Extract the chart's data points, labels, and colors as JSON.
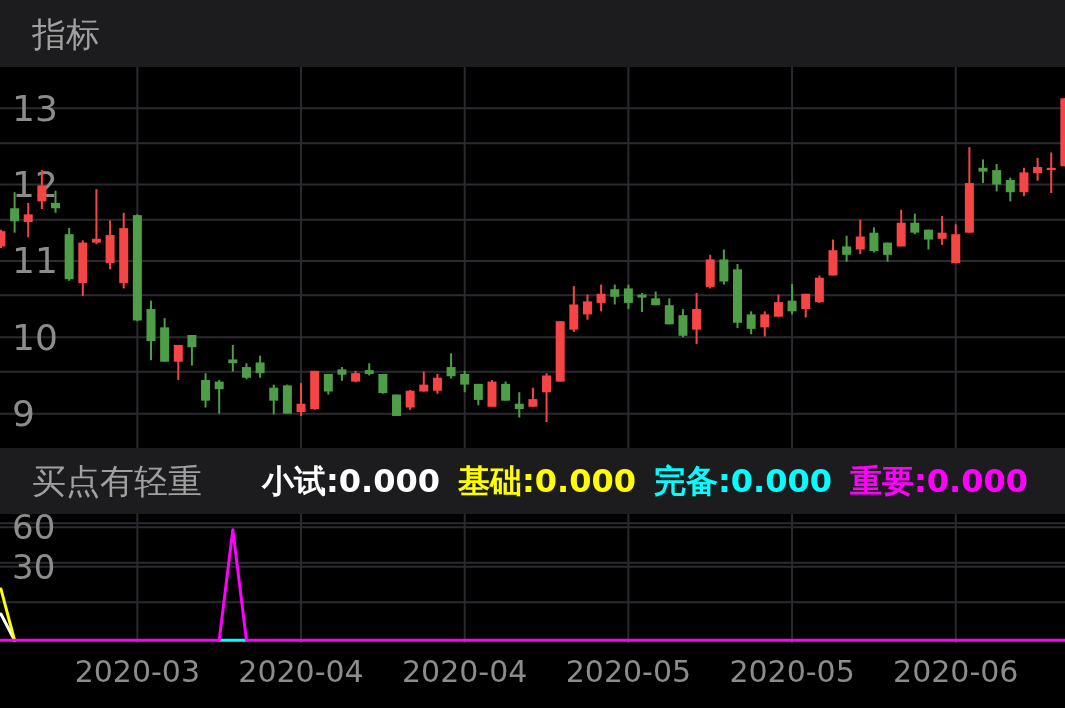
{
  "chart_data": [
    {
      "type": "candlestick",
      "title": "指标",
      "categories": [
        null,
        null,
        null,
        null,
        null,
        null,
        null,
        null,
        null,
        null,
        "2020-03",
        null,
        null,
        null,
        null,
        null,
        null,
        null,
        null,
        null,
        null,
        null,
        "2020-04",
        null,
        null,
        null,
        null,
        null,
        null,
        null,
        null,
        null,
        null,
        null,
        "2020-04",
        null,
        null,
        null,
        null,
        null,
        null,
        null,
        null,
        null,
        null,
        null,
        "2020-05",
        null,
        null,
        null,
        null,
        null,
        null,
        null,
        null,
        null,
        null,
        null,
        "2020-05",
        null,
        null,
        null,
        null,
        null,
        null,
        null,
        null,
        null,
        null,
        null,
        "2020-06",
        null,
        null,
        null,
        null,
        null,
        null,
        null,
        null
      ],
      "ohlc": [
        [
          11.19,
          11.41,
          11.17,
          11.39
        ],
        [
          11.69,
          11.9,
          11.37,
          11.52
        ],
        [
          11.51,
          11.76,
          11.31,
          11.61
        ],
        [
          11.78,
          12.19,
          11.68,
          11.99
        ],
        [
          11.76,
          11.92,
          11.63,
          11.69
        ],
        [
          11.35,
          11.43,
          10.74,
          10.76
        ],
        [
          10.71,
          11.27,
          10.54,
          11.24
        ],
        [
          11.24,
          11.94,
          11.22,
          11.29
        ],
        [
          10.97,
          11.53,
          10.89,
          11.34
        ],
        [
          10.71,
          11.63,
          10.64,
          11.43
        ],
        [
          11.6,
          11.61,
          10.21,
          10.22
        ],
        [
          10.37,
          10.48,
          9.7,
          9.95
        ],
        [
          10.13,
          10.25,
          9.68,
          9.68
        ],
        [
          9.68,
          9.9,
          9.44,
          9.9
        ],
        [
          10.03,
          10.03,
          9.63,
          9.87
        ],
        [
          9.44,
          9.53,
          9.08,
          9.17
        ],
        [
          9.42,
          9.44,
          9.0,
          9.32
        ],
        [
          9.71,
          9.9,
          9.55,
          9.66
        ],
        [
          9.61,
          9.66,
          9.45,
          9.47
        ],
        [
          9.67,
          9.76,
          9.47,
          9.53
        ],
        [
          9.34,
          9.38,
          8.99,
          9.17
        ],
        [
          9.37,
          9.38,
          9.0,
          9.0
        ],
        [
          9.02,
          9.4,
          8.97,
          9.13
        ],
        [
          9.06,
          9.56,
          9.05,
          9.56
        ],
        [
          9.52,
          9.52,
          9.25,
          9.29
        ],
        [
          9.58,
          9.61,
          9.43,
          9.51
        ],
        [
          9.42,
          9.56,
          9.41,
          9.53
        ],
        [
          9.57,
          9.66,
          9.5,
          9.52
        ],
        [
          9.52,
          9.52,
          9.26,
          9.27
        ],
        [
          9.25,
          9.25,
          8.97,
          8.97
        ],
        [
          9.08,
          9.31,
          9.05,
          9.3
        ],
        [
          9.29,
          9.55,
          9.29,
          9.38
        ],
        [
          9.3,
          9.52,
          9.26,
          9.47
        ],
        [
          9.61,
          9.79,
          9.46,
          9.49
        ],
        [
          9.52,
          9.56,
          9.28,
          9.38
        ],
        [
          9.39,
          9.39,
          9.11,
          9.18
        ],
        [
          9.09,
          9.44,
          9.09,
          9.42
        ],
        [
          9.39,
          9.42,
          9.17,
          9.17
        ],
        [
          9.13,
          9.28,
          8.95,
          9.06
        ],
        [
          9.09,
          9.34,
          9.09,
          9.19
        ],
        [
          9.28,
          9.53,
          8.89,
          9.5
        ],
        [
          9.42,
          10.21,
          9.42,
          10.21
        ],
        [
          10.1,
          10.67,
          10.07,
          10.43
        ],
        [
          10.3,
          10.56,
          10.23,
          10.47
        ],
        [
          10.45,
          10.69,
          10.34,
          10.57
        ],
        [
          10.63,
          10.69,
          10.43,
          10.53
        ],
        [
          10.64,
          10.69,
          10.37,
          10.45
        ],
        [
          10.56,
          10.58,
          10.33,
          10.52
        ],
        [
          10.51,
          10.6,
          10.42,
          10.42
        ],
        [
          10.42,
          10.51,
          10.17,
          10.17
        ],
        [
          10.29,
          10.37,
          10.0,
          10.02
        ],
        [
          10.1,
          10.58,
          9.91,
          10.37
        ],
        [
          10.66,
          11.08,
          10.64,
          11.02
        ],
        [
          11.02,
          11.15,
          10.69,
          10.73
        ],
        [
          10.89,
          10.96,
          10.12,
          10.19
        ],
        [
          10.3,
          10.34,
          10.04,
          10.11
        ],
        [
          10.13,
          10.34,
          10.01,
          10.3
        ],
        [
          10.27,
          10.56,
          10.27,
          10.46
        ],
        [
          10.48,
          10.7,
          10.3,
          10.34
        ],
        [
          10.37,
          10.57,
          10.26,
          10.57
        ],
        [
          10.46,
          10.81,
          10.45,
          10.78
        ],
        [
          10.81,
          11.28,
          10.81,
          11.14
        ],
        [
          11.19,
          11.33,
          10.99,
          11.08
        ],
        [
          11.15,
          11.54,
          11.09,
          11.32
        ],
        [
          11.37,
          11.44,
          11.11,
          11.13
        ],
        [
          11.24,
          11.24,
          10.99,
          11.08
        ],
        [
          11.19,
          11.67,
          11.19,
          11.5
        ],
        [
          11.5,
          11.62,
          11.35,
          11.37
        ],
        [
          11.41,
          11.41,
          11.15,
          11.28
        ],
        [
          11.29,
          11.59,
          11.21,
          11.37
        ],
        [
          10.97,
          11.48,
          10.97,
          11.35
        ],
        [
          11.37,
          12.49,
          11.37,
          12.02
        ],
        [
          12.22,
          12.33,
          12.02,
          12.17
        ],
        [
          12.19,
          12.27,
          11.91,
          12.0
        ],
        [
          12.06,
          12.09,
          11.78,
          11.9
        ],
        [
          11.9,
          12.22,
          11.85,
          12.16
        ],
        [
          12.15,
          12.35,
          12.05,
          12.23
        ],
        [
          12.19,
          12.42,
          11.89,
          12.22
        ],
        [
          12.24,
          13.13,
          12.24,
          13.13
        ]
      ],
      "colors": [
        "#f64545",
        "#4e9d47",
        "#f64545",
        "#f64545",
        "#4e9d47",
        "#4e9d47",
        "#f64545",
        "#f64545",
        "#f64545",
        "#f64545",
        "#4e9d47",
        "#4e9d47",
        "#4e9d47",
        "#f64545",
        "#4e9d47",
        "#4e9d47",
        "#4e9d47",
        "#4e9d47",
        "#4e9d47",
        "#4e9d47",
        "#4e9d47",
        "#4e9d47",
        "#f64545",
        "#f64545",
        "#4e9d47",
        "#4e9d47",
        "#f64545",
        "#4e9d47",
        "#4e9d47",
        "#4e9d47",
        "#f64545",
        "#f64545",
        "#f64545",
        "#4e9d47",
        "#4e9d47",
        "#4e9d47",
        "#f64545",
        "#4e9d47",
        "#4e9d47",
        "#f64545",
        "#f64545",
        "#f64545",
        "#f64545",
        "#f64545",
        "#f64545",
        "#4e9d47",
        "#4e9d47",
        "#4e9d47",
        "#4e9d47",
        "#4e9d47",
        "#4e9d47",
        "#f64545",
        "#f64545",
        "#4e9d47",
        "#4e9d47",
        "#4e9d47",
        "#f64545",
        "#f64545",
        "#4e9d47",
        "#f64545",
        "#f64545",
        "#f64545",
        "#4e9d47",
        "#f64545",
        "#4e9d47",
        "#4e9d47",
        "#f64545",
        "#4e9d47",
        "#4e9d47",
        "#f64545",
        "#f64545",
        "#f64545",
        "#4e9d47",
        "#4e9d47",
        "#4e9d47",
        "#f64545",
        "#f64545",
        "#f64545",
        "#f64545"
      ],
      "ylim": [
        8.55,
        13.54
      ],
      "yticks": [
        9,
        10,
        11,
        12,
        13,
        {
          "value": 9.55,
          "label": null
        },
        {
          "value": 10.55,
          "label": null
        },
        {
          "value": 11.54,
          "label": null
        },
        {
          "value": 12.54,
          "label": null
        }
      ],
      "grid": true,
      "tick_labels": "y"
    },
    {
      "type": "line",
      "title": "买点有轻重",
      "categories": [
        null,
        null,
        null,
        null,
        null,
        null,
        null,
        null,
        null,
        null,
        "2020-03",
        null,
        null,
        null,
        null,
        null,
        null,
        null,
        null,
        null,
        null,
        null,
        "2020-04",
        null,
        null,
        null,
        null,
        null,
        null,
        null,
        null,
        null,
        null,
        null,
        "2020-04",
        null,
        null,
        null,
        null,
        null,
        null,
        null,
        null,
        null,
        null,
        null,
        "2020-05",
        null,
        null,
        null,
        null,
        null,
        null,
        null,
        null,
        null,
        null,
        null,
        "2020-05",
        null,
        null,
        null,
        null,
        null,
        null,
        null,
        null,
        null,
        null,
        null,
        "2020-06",
        null,
        null,
        null,
        null,
        null,
        null,
        null,
        null
      ],
      "series": [
        {
          "name": "小试:0.000",
          "color": "#ffffff",
          "values": [
            -6,
            -26,
            null,
            null,
            null,
            null,
            null,
            null,
            null,
            null,
            null,
            null,
            null,
            null,
            null,
            null,
            null,
            null,
            null,
            null,
            null,
            null,
            null,
            null,
            null,
            null,
            null,
            null,
            null,
            null,
            null,
            null,
            null,
            null,
            null,
            null,
            null,
            null,
            null,
            null,
            null,
            null,
            null,
            null,
            null,
            null,
            null,
            null,
            null,
            null,
            null,
            null,
            null,
            null,
            null,
            null,
            null,
            null,
            null,
            null,
            null,
            null,
            null,
            null,
            null,
            null,
            null,
            null,
            null,
            null,
            null,
            null,
            null,
            null,
            null,
            null,
            null,
            null,
            null
          ]
        },
        {
          "name": "基础:0.000",
          "color": "#ffff00",
          "values": [
            13,
            -26,
            null,
            null,
            null,
            null,
            null,
            null,
            null,
            null,
            null,
            null,
            null,
            null,
            null,
            null,
            null,
            null,
            null,
            null,
            null,
            null,
            null,
            null,
            null,
            null,
            null,
            null,
            null,
            null,
            null,
            null,
            null,
            null,
            null,
            null,
            null,
            null,
            null,
            null,
            null,
            null,
            null,
            null,
            null,
            null,
            null,
            null,
            null,
            null,
            null,
            null,
            null,
            null,
            null,
            null,
            null,
            null,
            null,
            null,
            null,
            null,
            null,
            null,
            null,
            null,
            null,
            null,
            null,
            null,
            null,
            null,
            null,
            null,
            null,
            null,
            null,
            null,
            null
          ]
        },
        {
          "name": "完备:0.000",
          "color": "#00ffff",
          "values": [
            null,
            null,
            null,
            null,
            null,
            null,
            null,
            null,
            null,
            null,
            null,
            null,
            null,
            null,
            null,
            null,
            -26,
            -26,
            -26,
            null,
            null,
            null,
            null,
            null,
            null,
            null,
            null,
            null,
            null,
            null,
            null,
            null,
            null,
            null,
            null,
            null,
            null,
            null,
            null,
            null,
            null,
            null,
            null,
            null,
            null,
            null,
            null,
            null,
            null,
            null,
            null,
            null,
            null,
            null,
            null,
            null,
            null,
            null,
            null,
            null,
            null,
            null,
            null,
            null,
            null,
            null,
            null,
            null,
            null,
            null,
            null,
            null,
            null,
            null,
            null,
            null,
            null,
            null,
            null
          ]
        },
        {
          "name": "重要:0.000",
          "color": "#ff00ff",
          "values": [
            -26,
            -26,
            -26,
            -26,
            -26,
            -26,
            -26,
            -26,
            -26,
            -26,
            -26,
            -26,
            -26,
            -26,
            -26,
            -26,
            -26,
            58,
            -26,
            -26,
            -26,
            -26,
            -26,
            -26,
            -26,
            -26,
            -26,
            -26,
            -26,
            -26,
            -26,
            -26,
            -26,
            -26,
            -26,
            -26,
            -26,
            -26,
            -26,
            -26,
            -26,
            -26,
            -26,
            -26,
            -26,
            -26,
            -26,
            -26,
            -26,
            -26,
            -26,
            -26,
            -26,
            -26,
            -26,
            -26,
            -26,
            -26,
            -26,
            -26,
            -26,
            -26,
            -26,
            -26,
            -26,
            -26,
            -26,
            -26,
            -26,
            -26,
            -26,
            -26,
            -26,
            -26,
            -26,
            -26,
            -26,
            -26,
            -26
          ]
        }
      ],
      "ylim": [
        -28,
        70
      ],
      "yticks": [
        30,
        60,
        {
          "value": 3,
          "label": null
        },
        {
          "value": 33,
          "label": null
        },
        {
          "value": 63,
          "label": null
        }
      ],
      "grid": true,
      "legend": "top"
    }
  ]
}
